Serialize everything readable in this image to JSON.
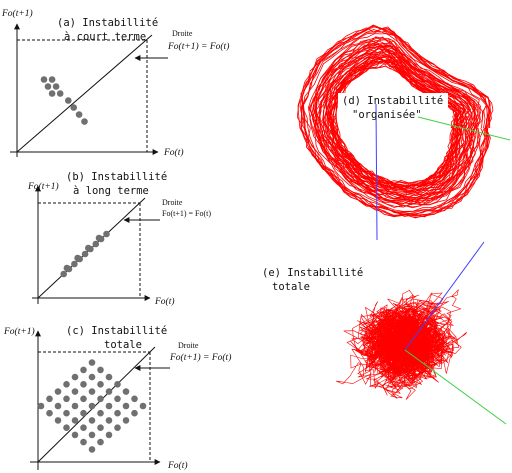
{
  "colors": {
    "attractor": "#ff0000",
    "axis_blue": "#4040ff",
    "axis_green": "#40d040",
    "dot": "#707070",
    "line": "#111111"
  },
  "panels": [
    {
      "id": "a",
      "axis_y": "Fo(t+1)",
      "axis_x": "Fo(t)",
      "caption_line1": "(a) Instabillité",
      "caption_line2": "à court terme",
      "droite_label": "Droite",
      "droite_eq": "Fo(t+1) = Fo(t)",
      "points": [
        [
          0.2,
          0.62
        ],
        [
          0.26,
          0.62
        ],
        [
          0.23,
          0.56
        ],
        [
          0.29,
          0.56
        ],
        [
          0.26,
          0.5
        ],
        [
          0.32,
          0.5
        ],
        [
          0.38,
          0.44
        ],
        [
          0.42,
          0.38
        ],
        [
          0.46,
          0.32
        ],
        [
          0.5,
          0.26
        ]
      ]
    },
    {
      "id": "b",
      "axis_y": "Fo(t+1)",
      "axis_x": "Fo(t)",
      "caption_line1": "(b) Instabillité",
      "caption_line2": "à long terme",
      "droite_label": "Droite",
      "droite_eq": "Fo(t+1) = Fo(t)",
      "points": [
        [
          0.24,
          0.24
        ],
        [
          0.29,
          0.29
        ],
        [
          0.34,
          0.34
        ],
        [
          0.39,
          0.39
        ],
        [
          0.44,
          0.44
        ],
        [
          0.49,
          0.49
        ],
        [
          0.54,
          0.54
        ],
        [
          0.59,
          0.59
        ],
        [
          0.64,
          0.64
        ],
        [
          0.27,
          0.3
        ],
        [
          0.37,
          0.4
        ],
        [
          0.47,
          0.5
        ],
        [
          0.57,
          0.6
        ]
      ]
    },
    {
      "id": "c",
      "axis_y": "Fo(t+1)",
      "axis_x": "Fo(t)",
      "caption_line1": "(c) Instabillité",
      "caption_line2": "totale",
      "droite_label": "Droite",
      "droite_eq": "Fo(t+1) = Fo(t)"
    }
  ],
  "attractors": [
    {
      "id": "d",
      "caption_line1": "(d) Instabillité",
      "caption_line2": "\"organisée\""
    },
    {
      "id": "e",
      "caption_line1": "(e) Instabillité",
      "caption_line2": "totale"
    }
  ]
}
